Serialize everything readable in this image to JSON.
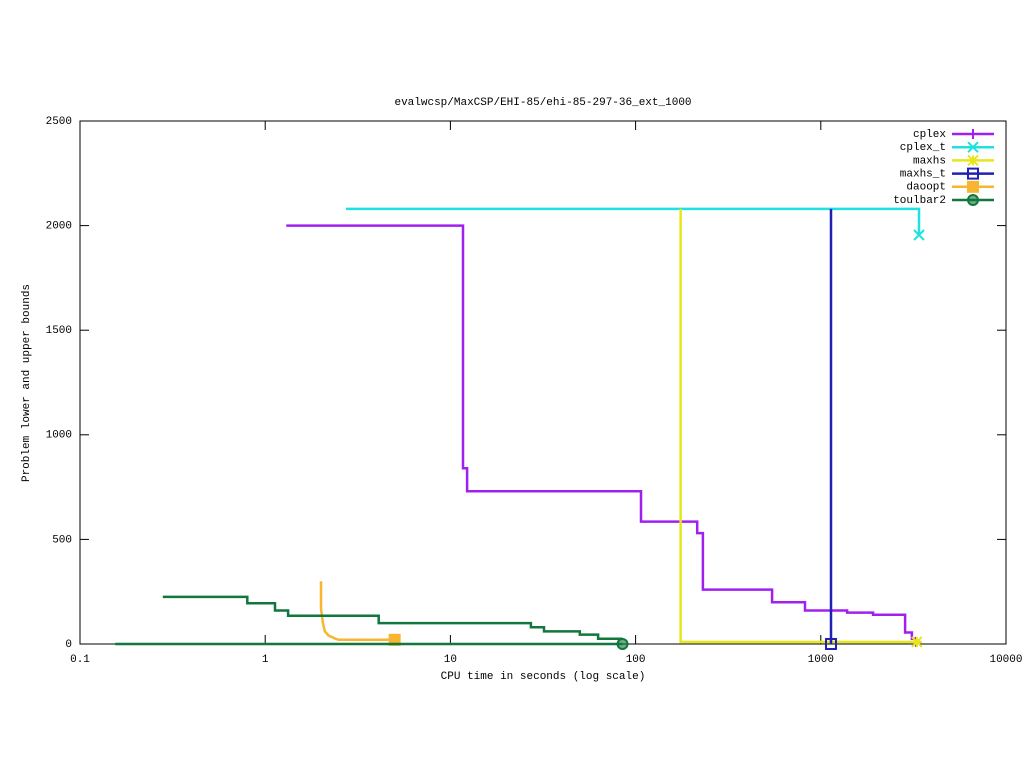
{
  "chart_data": {
    "type": "line",
    "title": "evalwcsp/MaxCSP/EHI-85/ehi-85-297-36_ext_1000",
    "x_label": "CPU time in seconds (log scale)",
    "y_label": "Problem lower and upper bounds",
    "x_log": true,
    "xlim": [
      0.1,
      10000
    ],
    "xticks": [
      0.1,
      1,
      10,
      100,
      1000,
      10000
    ],
    "ylim": [
      0,
      2500
    ],
    "yticks": [
      0,
      500,
      1000,
      1500,
      2000,
      2500
    ],
    "legend": "top-right",
    "series": [
      {
        "name": "cplex",
        "color": "#a020f0",
        "marker": "plus",
        "x": [
          1.3,
          11.7,
          11.7,
          12.3,
          12.3,
          107,
          107,
          215,
          215,
          231,
          231,
          546,
          546,
          822,
          822,
          1386,
          1386,
          1915,
          1915,
          2851,
          2851,
          3105,
          3105,
          3266,
          3266
        ],
        "values": [
          2000,
          2000,
          840,
          840,
          730,
          730,
          585,
          585,
          530,
          530,
          260,
          260,
          200,
          200,
          160,
          160,
          150,
          150,
          140,
          140,
          55,
          55,
          25,
          25,
          10
        ]
      },
      {
        "name": "cplex_t",
        "color": "#1ee2e2",
        "marker": "cross",
        "x": [
          2.73,
          3390,
          3390
        ],
        "values": [
          2080,
          2080,
          1955
        ]
      },
      {
        "name": "maxhs",
        "color": "#e6e61a",
        "marker": "star",
        "x": [
          175,
          175,
          3300
        ],
        "values": [
          2080,
          10,
          10
        ]
      },
      {
        "name": "maxhs_t",
        "color": "#2020b4",
        "marker": "box",
        "x": [
          1135,
          1135
        ],
        "values": [
          2080,
          0
        ]
      },
      {
        "name": "daoopt",
        "color": "#f7b530",
        "marker": "filled-box",
        "x": [
          2.0,
          2.0,
          2.05,
          2.1,
          2.2,
          2.4,
          2.5,
          5.0
        ],
        "values": [
          300,
          170,
          100,
          60,
          40,
          25,
          20,
          20
        ]
      },
      {
        "name": "toulbar2",
        "color": "#11773c",
        "marker": "circle",
        "x": [
          0.28,
          0.8,
          0.8,
          1.13,
          1.13,
          1.33,
          1.33,
          4.1,
          4.1,
          27.2,
          27.2,
          32,
          32,
          50,
          50,
          62.7,
          62.7,
          85,
          null,
          0.155,
          85
        ],
        "values": [
          225,
          225,
          195,
          195,
          160,
          160,
          135,
          135,
          100,
          100,
          80,
          80,
          60,
          60,
          45,
          45,
          25,
          25,
          null,
          0,
          0
        ]
      }
    ]
  }
}
